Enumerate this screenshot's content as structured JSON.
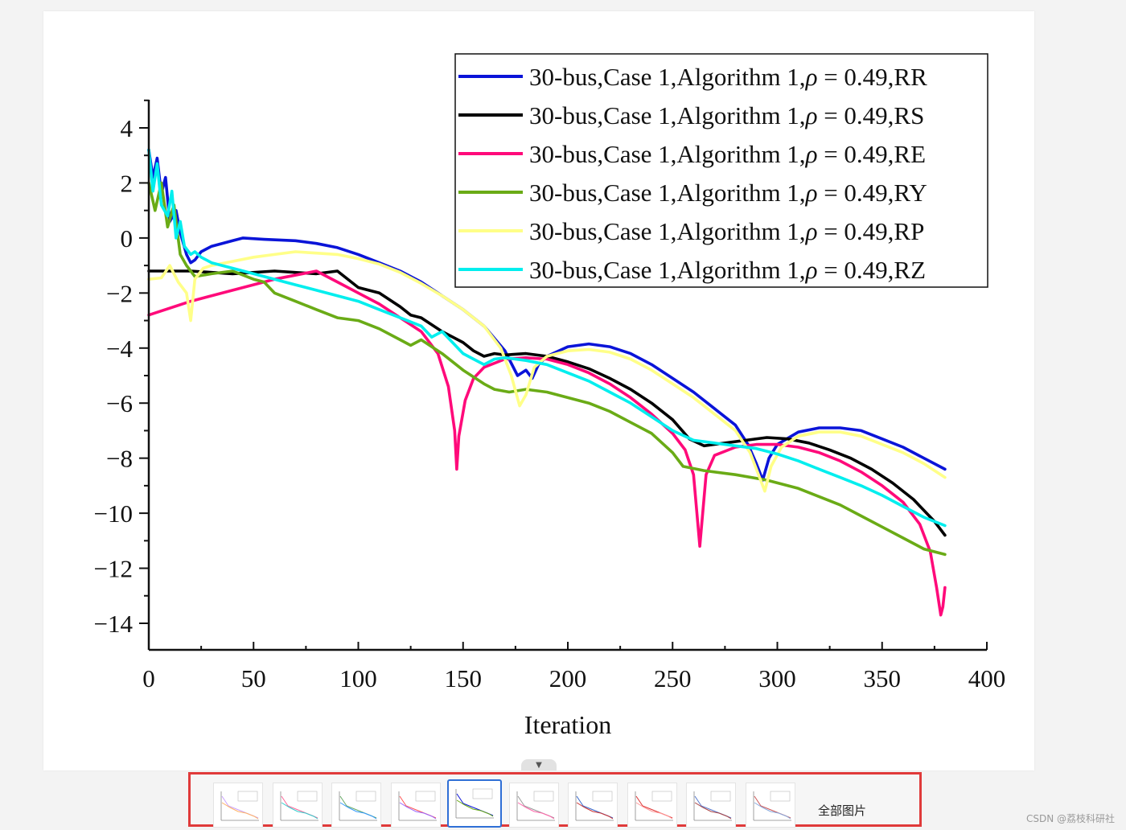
{
  "footer": {
    "all_images_label": "全部图片",
    "watermark": "CSDN @荔枝科研社"
  },
  "thumbnails": {
    "count": 10,
    "active_index": 4
  },
  "chart_data": {
    "type": "line",
    "title": "",
    "xlabel": "Iteration",
    "ylabel": "",
    "xlim": [
      0,
      400
    ],
    "ylim": [
      -15,
      5
    ],
    "x_ticks": [
      "0",
      "50",
      "100",
      "150",
      "200",
      "250",
      "300",
      "350",
      "400"
    ],
    "y_ticks": [
      "4",
      "2",
      "0",
      "−2",
      "−4",
      "−6",
      "−8",
      "−10",
      "−12",
      "−14"
    ],
    "y_tick_values": [
      4,
      2,
      0,
      -2,
      -4,
      -6,
      -8,
      -10,
      -12,
      -14
    ],
    "grid": false,
    "legend_position": "top-right",
    "legend_prefix": "30-bus,Case 1,Algorithm 1,",
    "legend_rho": "ρ",
    "legend_eq": " = 0.49,",
    "series": [
      {
        "name": "30-bus,Case 1,Algorithm 1,ρ = 0.49,RR",
        "suffix": "RR",
        "color": "#0a14d8",
        "points": [
          [
            0,
            3.2
          ],
          [
            2,
            2.2
          ],
          [
            4,
            2.9
          ],
          [
            6,
            1.6
          ],
          [
            8,
            2.2
          ],
          [
            10,
            0.6
          ],
          [
            13,
            1.0
          ],
          [
            15,
            0.2
          ],
          [
            18,
            -0.6
          ],
          [
            20,
            -0.9
          ],
          [
            22,
            -0.8
          ],
          [
            25,
            -0.5
          ],
          [
            30,
            -0.3
          ],
          [
            40,
            -0.1
          ],
          [
            45,
            0.0
          ],
          [
            55,
            -0.05
          ],
          [
            70,
            -0.1
          ],
          [
            80,
            -0.2
          ],
          [
            90,
            -0.35
          ],
          [
            100,
            -0.6
          ],
          [
            110,
            -0.9
          ],
          [
            120,
            -1.2
          ],
          [
            130,
            -1.6
          ],
          [
            140,
            -2.1
          ],
          [
            150,
            -2.6
          ],
          [
            160,
            -3.2
          ],
          [
            170,
            -4.1
          ],
          [
            176,
            -5.0
          ],
          [
            180,
            -4.8
          ],
          [
            183,
            -5.1
          ],
          [
            186,
            -4.6
          ],
          [
            190,
            -4.3
          ],
          [
            200,
            -3.95
          ],
          [
            210,
            -3.85
          ],
          [
            220,
            -3.95
          ],
          [
            230,
            -4.2
          ],
          [
            240,
            -4.6
          ],
          [
            250,
            -5.1
          ],
          [
            260,
            -5.6
          ],
          [
            270,
            -6.2
          ],
          [
            280,
            -6.8
          ],
          [
            286,
            -7.5
          ],
          [
            290,
            -8.2
          ],
          [
            293,
            -8.8
          ],
          [
            296,
            -8.0
          ],
          [
            300,
            -7.5
          ],
          [
            310,
            -7.05
          ],
          [
            320,
            -6.9
          ],
          [
            330,
            -6.9
          ],
          [
            340,
            -7.0
          ],
          [
            350,
            -7.3
          ],
          [
            360,
            -7.6
          ],
          [
            370,
            -8.0
          ],
          [
            380,
            -8.4
          ]
        ]
      },
      {
        "name": "30-bus,Case 1,Algorithm 1,ρ = 0.49,RS",
        "suffix": "RS",
        "color": "#000000",
        "points": [
          [
            0,
            -1.2
          ],
          [
            10,
            -1.2
          ],
          [
            20,
            -1.2
          ],
          [
            30,
            -1.25
          ],
          [
            40,
            -1.3
          ],
          [
            60,
            -1.2
          ],
          [
            80,
            -1.3
          ],
          [
            90,
            -1.2
          ],
          [
            100,
            -1.8
          ],
          [
            110,
            -2.0
          ],
          [
            120,
            -2.5
          ],
          [
            125,
            -2.8
          ],
          [
            130,
            -2.9
          ],
          [
            140,
            -3.4
          ],
          [
            150,
            -3.8
          ],
          [
            155,
            -4.1
          ],
          [
            160,
            -4.3
          ],
          [
            165,
            -4.2
          ],
          [
            170,
            -4.25
          ],
          [
            180,
            -4.2
          ],
          [
            190,
            -4.3
          ],
          [
            200,
            -4.5
          ],
          [
            210,
            -4.75
          ],
          [
            220,
            -5.1
          ],
          [
            230,
            -5.5
          ],
          [
            240,
            -6.0
          ],
          [
            250,
            -6.6
          ],
          [
            258,
            -7.3
          ],
          [
            265,
            -7.55
          ],
          [
            275,
            -7.45
          ],
          [
            285,
            -7.35
          ],
          [
            295,
            -7.25
          ],
          [
            305,
            -7.3
          ],
          [
            315,
            -7.45
          ],
          [
            325,
            -7.7
          ],
          [
            335,
            -8.0
          ],
          [
            345,
            -8.4
          ],
          [
            355,
            -8.9
          ],
          [
            365,
            -9.5
          ],
          [
            375,
            -10.3
          ],
          [
            380,
            -10.8
          ]
        ]
      },
      {
        "name": "30-bus,Case 1,Algorithm 1,ρ = 0.49,RE",
        "suffix": "RE",
        "color": "#ff0a7a",
        "points": [
          [
            0,
            -2.8
          ],
          [
            20,
            -2.3
          ],
          [
            40,
            -1.9
          ],
          [
            60,
            -1.5
          ],
          [
            80,
            -1.2
          ],
          [
            90,
            -1.6
          ],
          [
            100,
            -2.0
          ],
          [
            110,
            -2.4
          ],
          [
            120,
            -2.9
          ],
          [
            130,
            -3.4
          ],
          [
            138,
            -4.2
          ],
          [
            143,
            -5.4
          ],
          [
            146,
            -7.0
          ],
          [
            147,
            -8.4
          ],
          [
            148,
            -7.2
          ],
          [
            151,
            -5.9
          ],
          [
            155,
            -5.1
          ],
          [
            160,
            -4.7
          ],
          [
            170,
            -4.4
          ],
          [
            180,
            -4.35
          ],
          [
            190,
            -4.4
          ],
          [
            200,
            -4.6
          ],
          [
            210,
            -4.9
          ],
          [
            220,
            -5.3
          ],
          [
            230,
            -5.8
          ],
          [
            240,
            -6.4
          ],
          [
            250,
            -7.1
          ],
          [
            256,
            -7.7
          ],
          [
            260,
            -8.6
          ],
          [
            263,
            -11.2
          ],
          [
            266,
            -8.6
          ],
          [
            270,
            -7.9
          ],
          [
            280,
            -7.6
          ],
          [
            290,
            -7.5
          ],
          [
            300,
            -7.5
          ],
          [
            310,
            -7.6
          ],
          [
            320,
            -7.8
          ],
          [
            330,
            -8.1
          ],
          [
            340,
            -8.5
          ],
          [
            350,
            -9.0
          ],
          [
            360,
            -9.6
          ],
          [
            368,
            -10.4
          ],
          [
            373,
            -11.4
          ],
          [
            376,
            -12.7
          ],
          [
            378,
            -13.7
          ],
          [
            379,
            -13.4
          ],
          [
            380,
            -12.7
          ]
        ]
      },
      {
        "name": "30-bus,Case 1,Algorithm 1,ρ = 0.49,RY",
        "suffix": "RY",
        "color": "#6aab16",
        "points": [
          [
            0,
            2.0
          ],
          [
            3,
            1.0
          ],
          [
            6,
            2.0
          ],
          [
            9,
            0.4
          ],
          [
            12,
            1.2
          ],
          [
            15,
            -0.6
          ],
          [
            18,
            -1.0
          ],
          [
            22,
            -1.4
          ],
          [
            30,
            -1.3
          ],
          [
            40,
            -1.2
          ],
          [
            50,
            -1.5
          ],
          [
            55,
            -1.6
          ],
          [
            60,
            -2.0
          ],
          [
            70,
            -2.3
          ],
          [
            80,
            -2.6
          ],
          [
            90,
            -2.9
          ],
          [
            100,
            -3.0
          ],
          [
            110,
            -3.3
          ],
          [
            120,
            -3.7
          ],
          [
            125,
            -3.9
          ],
          [
            130,
            -3.7
          ],
          [
            140,
            -4.2
          ],
          [
            150,
            -4.8
          ],
          [
            160,
            -5.3
          ],
          [
            165,
            -5.5
          ],
          [
            172,
            -5.6
          ],
          [
            180,
            -5.5
          ],
          [
            190,
            -5.6
          ],
          [
            200,
            -5.8
          ],
          [
            210,
            -6.0
          ],
          [
            220,
            -6.3
          ],
          [
            230,
            -6.7
          ],
          [
            240,
            -7.1
          ],
          [
            250,
            -7.8
          ],
          [
            255,
            -8.3
          ],
          [
            265,
            -8.45
          ],
          [
            280,
            -8.6
          ],
          [
            295,
            -8.8
          ],
          [
            310,
            -9.1
          ],
          [
            320,
            -9.4
          ],
          [
            330,
            -9.7
          ],
          [
            340,
            -10.1
          ],
          [
            350,
            -10.5
          ],
          [
            360,
            -10.9
          ],
          [
            370,
            -11.3
          ],
          [
            380,
            -11.5
          ]
        ]
      },
      {
        "name": "30-bus,Case 1,Algorithm 1,ρ = 0.49,RP",
        "suffix": "RP",
        "color": "#ffff88",
        "points": [
          [
            0,
            -1.5
          ],
          [
            6,
            -1.45
          ],
          [
            10,
            -1.0
          ],
          [
            14,
            -1.6
          ],
          [
            18,
            -2.0
          ],
          [
            20,
            -3.0
          ],
          [
            22,
            -1.5
          ],
          [
            26,
            -1.1
          ],
          [
            30,
            -1.0
          ],
          [
            40,
            -0.85
          ],
          [
            50,
            -0.7
          ],
          [
            60,
            -0.6
          ],
          [
            70,
            -0.5
          ],
          [
            80,
            -0.55
          ],
          [
            90,
            -0.6
          ],
          [
            100,
            -0.75
          ],
          [
            110,
            -0.95
          ],
          [
            120,
            -1.25
          ],
          [
            130,
            -1.65
          ],
          [
            140,
            -2.1
          ],
          [
            150,
            -2.6
          ],
          [
            160,
            -3.2
          ],
          [
            168,
            -4.0
          ],
          [
            173,
            -5.0
          ],
          [
            177,
            -6.1
          ],
          [
            180,
            -5.7
          ],
          [
            184,
            -4.7
          ],
          [
            190,
            -4.3
          ],
          [
            200,
            -4.1
          ],
          [
            210,
            -4.05
          ],
          [
            220,
            -4.15
          ],
          [
            230,
            -4.4
          ],
          [
            240,
            -4.8
          ],
          [
            250,
            -5.3
          ],
          [
            260,
            -5.8
          ],
          [
            270,
            -6.4
          ],
          [
            280,
            -7.0
          ],
          [
            287,
            -7.8
          ],
          [
            292,
            -8.8
          ],
          [
            294,
            -9.2
          ],
          [
            297,
            -8.3
          ],
          [
            302,
            -7.6
          ],
          [
            310,
            -7.2
          ],
          [
            320,
            -7.05
          ],
          [
            330,
            -7.05
          ],
          [
            340,
            -7.2
          ],
          [
            350,
            -7.5
          ],
          [
            360,
            -7.8
          ],
          [
            370,
            -8.2
          ],
          [
            380,
            -8.7
          ]
        ]
      },
      {
        "name": "30-bus,Case 1,Algorithm 1,ρ = 0.49,RZ",
        "suffix": "RZ",
        "color": "#00eeee",
        "points": [
          [
            0,
            3.2
          ],
          [
            2,
            1.7
          ],
          [
            4,
            2.7
          ],
          [
            6,
            1.2
          ],
          [
            9,
            0.8
          ],
          [
            11,
            1.7
          ],
          [
            13,
            0.0
          ],
          [
            15,
            0.6
          ],
          [
            17,
            -0.3
          ],
          [
            20,
            -0.6
          ],
          [
            22,
            -0.5
          ],
          [
            25,
            -0.7
          ],
          [
            30,
            -0.9
          ],
          [
            40,
            -1.1
          ],
          [
            50,
            -1.3
          ],
          [
            60,
            -1.5
          ],
          [
            70,
            -1.7
          ],
          [
            80,
            -1.9
          ],
          [
            90,
            -2.1
          ],
          [
            100,
            -2.3
          ],
          [
            110,
            -2.6
          ],
          [
            120,
            -2.9
          ],
          [
            130,
            -3.2
          ],
          [
            135,
            -3.6
          ],
          [
            140,
            -3.4
          ],
          [
            145,
            -3.8
          ],
          [
            150,
            -4.2
          ],
          [
            155,
            -4.4
          ],
          [
            160,
            -4.6
          ],
          [
            165,
            -4.4
          ],
          [
            170,
            -4.35
          ],
          [
            180,
            -4.45
          ],
          [
            190,
            -4.6
          ],
          [
            200,
            -4.9
          ],
          [
            210,
            -5.2
          ],
          [
            220,
            -5.6
          ],
          [
            230,
            -6.0
          ],
          [
            240,
            -6.5
          ],
          [
            250,
            -7.0
          ],
          [
            260,
            -7.35
          ],
          [
            270,
            -7.45
          ],
          [
            280,
            -7.55
          ],
          [
            290,
            -7.65
          ],
          [
            300,
            -7.85
          ],
          [
            310,
            -8.1
          ],
          [
            320,
            -8.4
          ],
          [
            330,
            -8.7
          ],
          [
            340,
            -9.0
          ],
          [
            350,
            -9.35
          ],
          [
            360,
            -9.75
          ],
          [
            370,
            -10.15
          ],
          [
            380,
            -10.45
          ]
        ]
      }
    ]
  }
}
